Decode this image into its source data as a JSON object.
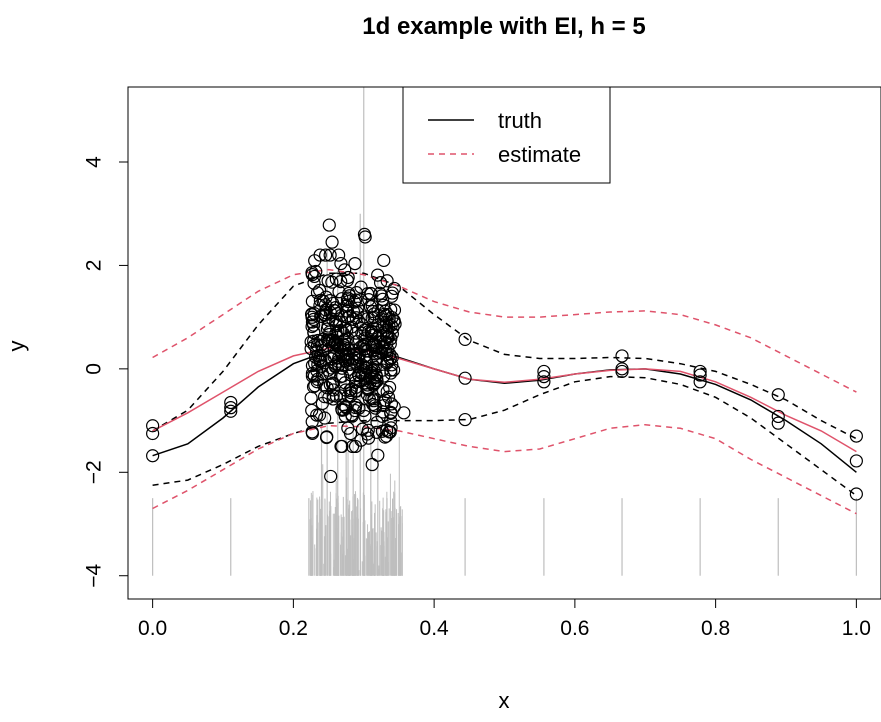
{
  "chart_data": {
    "type": "scatter",
    "title": "1d example with EI, h = 5",
    "xlabel": "x",
    "ylabel": "y",
    "xlim": [
      -0.035,
      1.035
    ],
    "ylim": [
      -4.45,
      5.45
    ],
    "xticks": [
      "0.0",
      "0.2",
      "0.4",
      "0.6",
      "0.8",
      "1.0"
    ],
    "xtick_values": [
      0,
      0.2,
      0.4,
      0.6,
      0.8,
      1.0
    ],
    "yticks": [
      "−4",
      "−2",
      "0",
      "2",
      "4"
    ],
    "ytick_values": [
      -4,
      -2,
      0,
      2,
      4
    ],
    "legend": {
      "placement": "top-center",
      "entries": [
        {
          "label": "truth",
          "color": "#000000",
          "style": "solid"
        },
        {
          "label": "estimate",
          "color": "#DF536B",
          "style": "dashed"
        }
      ]
    },
    "colors": {
      "truth": "#000000",
      "estimate": "#DF536B",
      "ei": "#BEBEBE",
      "points": "#000000"
    },
    "truth_curve": {
      "x": [
        0,
        0.05,
        0.1,
        0.15,
        0.2,
        0.25,
        0.3,
        0.35,
        0.4,
        0.45,
        0.5,
        0.55,
        0.6,
        0.65,
        0.7,
        0.75,
        0.8,
        0.85,
        0.9,
        0.95,
        1.0
      ],
      "y": [
        -1.68,
        -1.45,
        -0.95,
        -0.35,
        0.1,
        0.35,
        0.38,
        0.22,
        0.0,
        -0.2,
        -0.28,
        -0.22,
        -0.1,
        -0.02,
        0.0,
        -0.1,
        -0.3,
        -0.6,
        -1.0,
        -1.45,
        -2.0
      ]
    },
    "truth_band_upper": {
      "x": [
        0,
        0.05,
        0.1,
        0.15,
        0.2,
        0.25,
        0.3,
        0.35,
        0.4,
        0.45,
        0.5,
        0.55,
        0.6,
        0.65,
        0.7,
        0.75,
        0.8,
        0.85,
        0.9,
        0.95,
        1.0
      ],
      "y": [
        -1.2,
        -0.8,
        -0.05,
        0.85,
        1.6,
        1.85,
        1.85,
        1.6,
        1.05,
        0.55,
        0.28,
        0.2,
        0.2,
        0.22,
        0.2,
        0.1,
        -0.05,
        -0.3,
        -0.6,
        -1.0,
        -1.35
      ]
    },
    "truth_band_lower": {
      "x": [
        0,
        0.05,
        0.1,
        0.15,
        0.2,
        0.25,
        0.3,
        0.35,
        0.4,
        0.45,
        0.5,
        0.55,
        0.6,
        0.65,
        0.7,
        0.75,
        0.8,
        0.85,
        0.9,
        0.95,
        1.0
      ],
      "y": [
        -2.25,
        -2.15,
        -1.85,
        -1.5,
        -1.25,
        -1.05,
        -1.0,
        -1.0,
        -1.0,
        -0.98,
        -0.8,
        -0.5,
        -0.25,
        -0.15,
        -0.17,
        -0.3,
        -0.55,
        -0.95,
        -1.45,
        -1.95,
        -2.45
      ]
    },
    "estimate_curve": {
      "x": [
        0,
        0.05,
        0.1,
        0.15,
        0.2,
        0.25,
        0.3,
        0.35,
        0.4,
        0.45,
        0.5,
        0.55,
        0.6,
        0.65,
        0.7,
        0.75,
        0.8,
        0.85,
        0.9,
        0.95,
        1.0
      ],
      "y": [
        -1.2,
        -0.85,
        -0.45,
        -0.05,
        0.25,
        0.4,
        0.36,
        0.2,
        0.0,
        -0.2,
        -0.26,
        -0.2,
        -0.1,
        -0.03,
        0.0,
        -0.05,
        -0.25,
        -0.55,
        -0.9,
        -1.2,
        -1.6
      ]
    },
    "estimate_band_upper": {
      "x": [
        0,
        0.05,
        0.1,
        0.15,
        0.2,
        0.25,
        0.3,
        0.35,
        0.4,
        0.45,
        0.5,
        0.55,
        0.6,
        0.65,
        0.7,
        0.75,
        0.8,
        0.85,
        0.9,
        0.95,
        1.0
      ],
      "y": [
        0.22,
        0.6,
        1.05,
        1.5,
        1.82,
        1.92,
        1.82,
        1.6,
        1.3,
        1.1,
        1.0,
        1.0,
        1.05,
        1.1,
        1.12,
        1.05,
        0.85,
        0.6,
        0.25,
        -0.1,
        -0.45
      ]
    },
    "estimate_band_lower": {
      "x": [
        0,
        0.05,
        0.1,
        0.15,
        0.2,
        0.25,
        0.3,
        0.35,
        0.4,
        0.45,
        0.5,
        0.55,
        0.6,
        0.65,
        0.7,
        0.75,
        0.8,
        0.85,
        0.9,
        0.95,
        1.0
      ],
      "y": [
        -2.7,
        -2.35,
        -1.95,
        -1.55,
        -1.25,
        -1.1,
        -1.12,
        -1.2,
        -1.35,
        -1.5,
        -1.6,
        -1.55,
        -1.35,
        -1.15,
        -1.08,
        -1.15,
        -1.35,
        -1.75,
        -2.1,
        -2.45,
        -2.8
      ]
    },
    "sparse_points": {
      "x": [
        0,
        0,
        0,
        0.111,
        0.111,
        0.111,
        0.444,
        0.444,
        0.444,
        0.556,
        0.556,
        0.556,
        0.667,
        0.667,
        0.667,
        0.778,
        0.778,
        0.778,
        0.889,
        0.889,
        0.889,
        1.0,
        1.0,
        1.0
      ],
      "y": [
        -1.1,
        -1.25,
        -1.68,
        -0.65,
        -0.75,
        -0.82,
        0.57,
        -0.18,
        -0.98,
        -0.05,
        -0.15,
        -0.25,
        0.25,
        0.0,
        -0.05,
        -0.05,
        -0.12,
        -0.25,
        -0.5,
        -0.92,
        -1.05,
        -1.3,
        -1.78,
        -2.42
      ]
    },
    "cluster": {
      "x_min": 0.225,
      "x_max": 0.345,
      "count": 420,
      "y_center": 0.35,
      "y_spread": 0.75,
      "outliers": [
        {
          "x": 0.251,
          "y": 2.78
        },
        {
          "x": 0.301,
          "y": 2.6
        },
        {
          "x": 0.302,
          "y": 2.55
        },
        {
          "x": 0.253,
          "y": -2.08
        },
        {
          "x": 0.312,
          "y": -1.85
        },
        {
          "x": 0.32,
          "y": -1.67
        },
        {
          "x": 0.33,
          "y": -1.32
        },
        {
          "x": 0.357,
          "y": -0.85
        },
        {
          "x": 0.255,
          "y": 2.45
        }
      ]
    },
    "ei_lines": {
      "baseline": -4.0,
      "grid_x": [
        0,
        0.111,
        0.222,
        0.333,
        0.444,
        0.556,
        0.667,
        0.778,
        0.889,
        1.0
      ],
      "grid_top": -2.5,
      "cluster_x_min": 0.222,
      "cluster_x_max": 0.355,
      "cluster_count": 220,
      "tall": [
        {
          "x": 0.3,
          "top": 5.45
        },
        {
          "x": 0.295,
          "top": 3.0
        },
        {
          "x": 0.248,
          "top": 2.3
        },
        {
          "x": 0.263,
          "top": 1.9
        },
        {
          "x": 0.32,
          "top": 1.7
        },
        {
          "x": 0.24,
          "top": 1.1
        },
        {
          "x": 0.31,
          "top": 1.3
        },
        {
          "x": 0.275,
          "top": 0.5
        },
        {
          "x": 0.285,
          "top": -0.2
        }
      ]
    }
  }
}
